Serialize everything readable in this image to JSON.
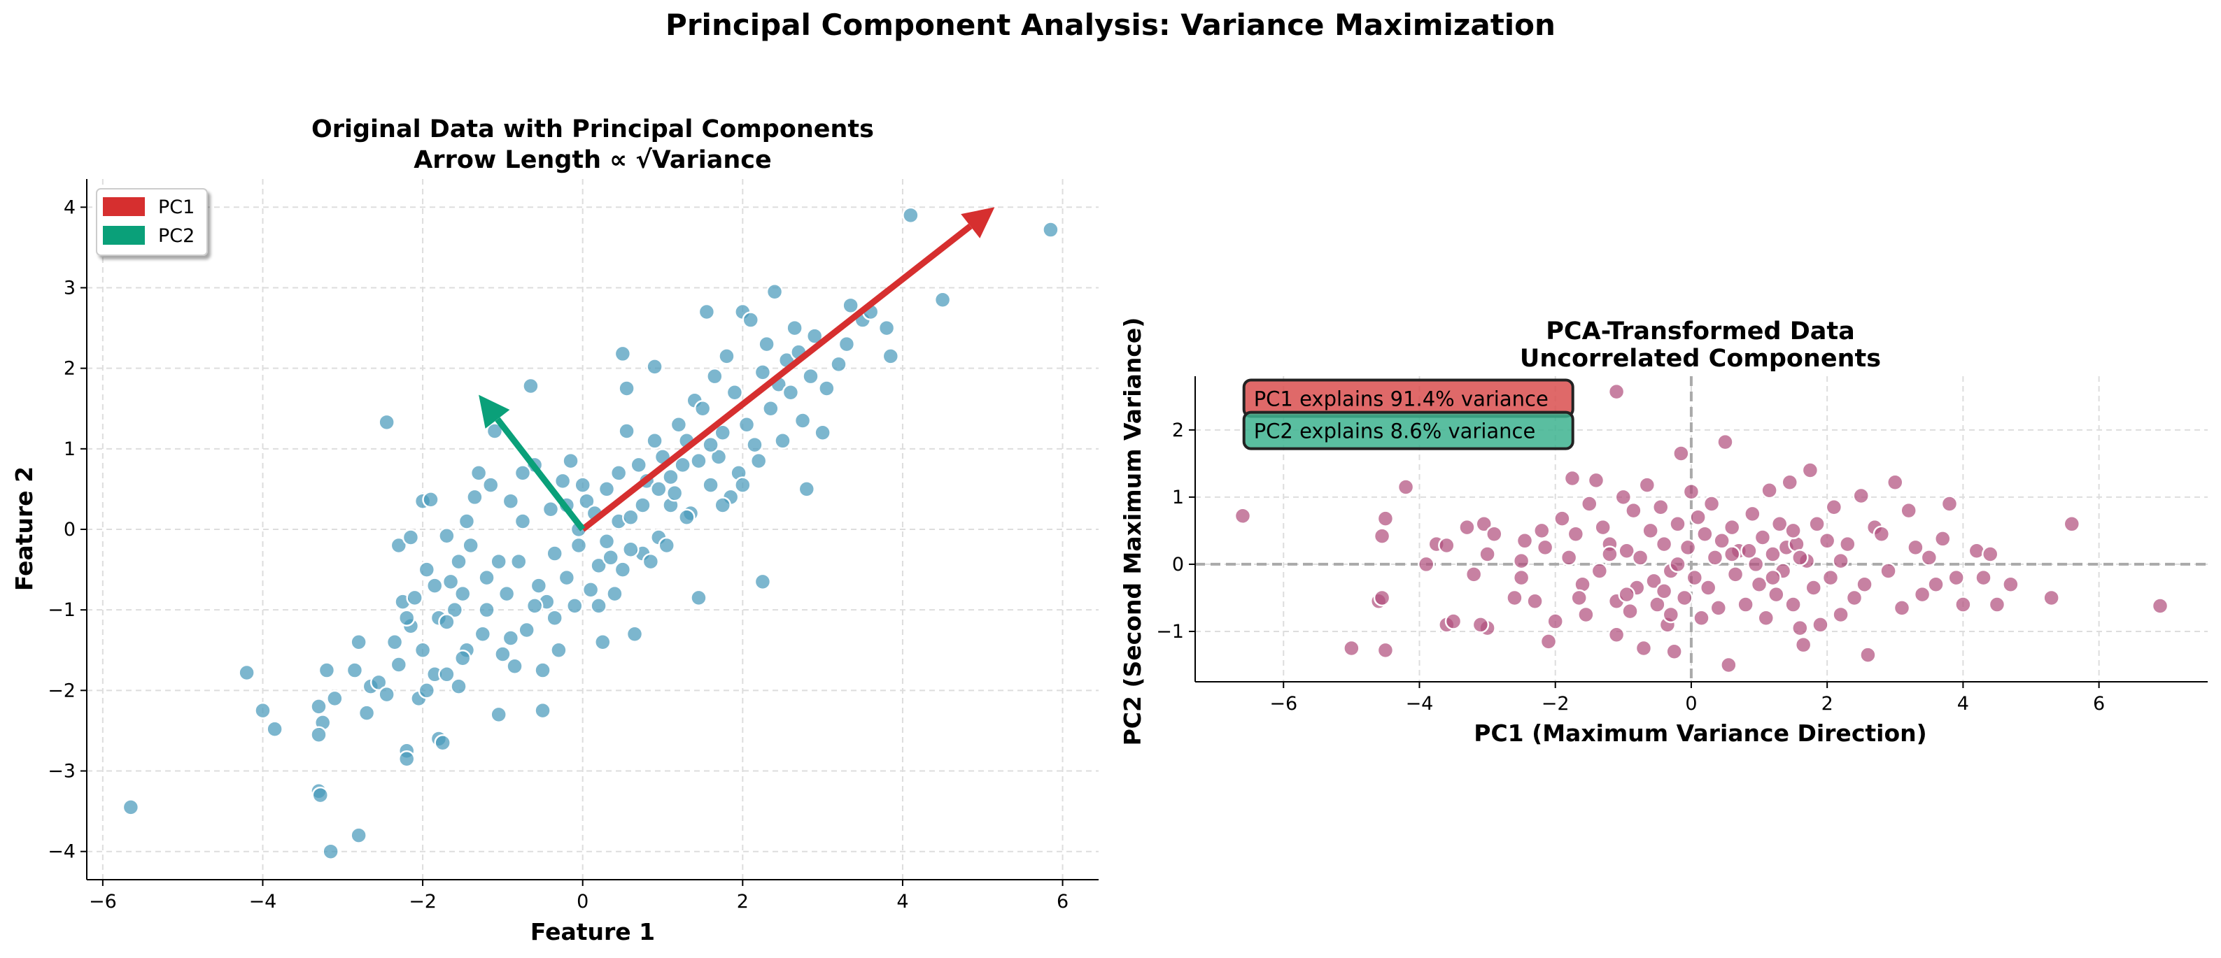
{
  "figure": {
    "suptitle": "Principal Component Analysis: Variance Maximization"
  },
  "chart_data": [
    {
      "type": "scatter",
      "title_line1": "Original Data with Principal Components",
      "title_line2": "Arrow Length ∝ √Variance",
      "xlabel": "Feature 1",
      "ylabel": "Feature 2",
      "xlim": [
        -6.2,
        6.45
      ],
      "ylim": [
        -4.35,
        4.35
      ],
      "xticks": [
        -6,
        -4,
        -2,
        0,
        2,
        4,
        6
      ],
      "yticks": [
        -4,
        -3,
        -2,
        -1,
        0,
        1,
        2,
        3,
        4
      ],
      "grid": true,
      "point_color": "#4a9abb",
      "legend": {
        "placement": "top-left",
        "entries": [
          {
            "label": "PC1",
            "color": "#d62f2f"
          },
          {
            "label": "PC2",
            "color": "#0aa079"
          }
        ]
      },
      "arrows": [
        {
          "name": "PC1",
          "from": [
            0,
            0
          ],
          "to": [
            5.15,
            4.0
          ],
          "color": "#d62f2f"
        },
        {
          "name": "PC2",
          "from": [
            0,
            0
          ],
          "to": [
            -1.3,
            1.67
          ],
          "color": "#0aa079"
        }
      ],
      "points": [
        [
          -5.65,
          -3.45
        ],
        [
          -4.2,
          -1.78
        ],
        [
          -4.0,
          -2.25
        ],
        [
          -3.85,
          -2.48
        ],
        [
          -3.3,
          -2.2
        ],
        [
          -3.25,
          -2.4
        ],
        [
          -3.3,
          -2.55
        ],
        [
          -3.3,
          -3.25
        ],
        [
          -3.28,
          -3.3
        ],
        [
          -3.15,
          -4.0
        ],
        [
          -2.8,
          -3.8
        ],
        [
          -3.2,
          -1.75
        ],
        [
          -3.1,
          -2.1
        ],
        [
          -2.85,
          -1.75
        ],
        [
          -2.7,
          -2.28
        ],
        [
          -2.65,
          -1.95
        ],
        [
          -2.55,
          -1.9
        ],
        [
          -2.45,
          -2.05
        ],
        [
          -2.8,
          -1.4
        ],
        [
          -2.35,
          -1.4
        ],
        [
          -2.3,
          -1.68
        ],
        [
          -2.2,
          -2.75
        ],
        [
          -2.2,
          -2.85
        ],
        [
          -2.15,
          -1.2
        ],
        [
          -2.05,
          -2.1
        ],
        [
          -2.0,
          -1.5
        ],
        [
          -1.95,
          -2.0
        ],
        [
          -1.85,
          -1.8
        ],
        [
          -1.8,
          -2.6
        ],
        [
          -1.75,
          -2.65
        ],
        [
          -1.7,
          -1.8
        ],
        [
          -1.55,
          -1.95
        ],
        [
          -1.45,
          -1.5
        ],
        [
          -2.45,
          1.33
        ],
        [
          -2.3,
          -0.2
        ],
        [
          -2.25,
          -0.9
        ],
        [
          -2.2,
          -1.1
        ],
        [
          -2.15,
          -0.1
        ],
        [
          -2.1,
          -0.85
        ],
        [
          -2.0,
          0.35
        ],
        [
          -1.95,
          -0.5
        ],
        [
          -1.9,
          0.37
        ],
        [
          -1.85,
          -0.7
        ],
        [
          -1.8,
          -1.1
        ],
        [
          -1.7,
          -0.08
        ],
        [
          -1.65,
          -0.65
        ],
        [
          -1.6,
          -1.0
        ],
        [
          -1.55,
          -0.4
        ],
        [
          -1.5,
          -1.6
        ],
        [
          -1.45,
          0.1
        ],
        [
          -1.4,
          -0.2
        ],
        [
          -1.35,
          0.4
        ],
        [
          -1.3,
          0.7
        ],
        [
          -1.25,
          -1.3
        ],
        [
          -1.2,
          -0.6
        ],
        [
          -1.2,
          -1.0
        ],
        [
          -1.1,
          1.22
        ],
        [
          -1.05,
          -2.3
        ],
        [
          -1.0,
          -1.55
        ],
        [
          -0.95,
          -0.8
        ],
        [
          -0.9,
          0.35
        ],
        [
          -0.85,
          -1.7
        ],
        [
          -0.8,
          -0.4
        ],
        [
          -0.75,
          0.1
        ],
        [
          -0.7,
          -1.25
        ],
        [
          -0.65,
          1.78
        ],
        [
          -0.6,
          0.8
        ],
        [
          -0.55,
          -0.7
        ],
        [
          -0.5,
          -1.75
        ],
        [
          -0.5,
          -2.25
        ],
        [
          -0.45,
          -0.9
        ],
        [
          -0.4,
          0.25
        ],
        [
          -0.35,
          -0.3
        ],
        [
          -0.3,
          -1.5
        ],
        [
          -0.25,
          0.6
        ],
        [
          -0.2,
          -0.6
        ],
        [
          -0.15,
          0.85
        ],
        [
          -0.1,
          -0.95
        ],
        [
          -0.05,
          -0.2
        ],
        [
          0.05,
          0.35
        ],
        [
          0.1,
          -0.75
        ],
        [
          0.15,
          0.2
        ],
        [
          0.2,
          -0.45
        ],
        [
          0.25,
          -1.4
        ],
        [
          0.3,
          0.5
        ],
        [
          0.35,
          -0.35
        ],
        [
          0.4,
          -0.8
        ],
        [
          0.45,
          0.1
        ],
        [
          0.5,
          -0.5
        ],
        [
          0.55,
          1.22
        ],
        [
          0.6,
          0.15
        ],
        [
          0.65,
          -1.3
        ],
        [
          0.7,
          0.8
        ],
        [
          0.75,
          -0.3
        ],
        [
          0.8,
          0.6
        ],
        [
          0.85,
          -0.4
        ],
        [
          0.9,
          1.1
        ],
        [
          0.95,
          -0.1
        ],
        [
          1.0,
          0.9
        ],
        [
          0.55,
          1.75
        ],
        [
          0.9,
          2.02
        ],
        [
          0.5,
          2.18
        ],
        [
          1.05,
          -0.2
        ],
        [
          1.1,
          0.3
        ],
        [
          1.15,
          0.45
        ],
        [
          1.2,
          1.3
        ],
        [
          1.25,
          0.8
        ],
        [
          1.3,
          1.1
        ],
        [
          1.35,
          0.2
        ],
        [
          1.4,
          1.6
        ],
        [
          1.45,
          -0.85
        ],
        [
          1.5,
          1.5
        ],
        [
          1.55,
          2.7
        ],
        [
          1.6,
          0.55
        ],
        [
          1.65,
          1.9
        ],
        [
          1.7,
          0.9
        ],
        [
          1.75,
          1.2
        ],
        [
          1.8,
          2.15
        ],
        [
          1.85,
          0.4
        ],
        [
          1.9,
          1.7
        ],
        [
          1.95,
          0.7
        ],
        [
          2.0,
          2.7
        ],
        [
          2.05,
          1.3
        ],
        [
          2.1,
          2.6
        ],
        [
          2.15,
          1.05
        ],
        [
          2.2,
          0.85
        ],
        [
          2.25,
          1.95
        ],
        [
          2.3,
          2.3
        ],
        [
          2.35,
          1.5
        ],
        [
          2.4,
          2.95
        ],
        [
          2.45,
          1.8
        ],
        [
          2.5,
          1.1
        ],
        [
          2.55,
          2.1
        ],
        [
          2.6,
          1.7
        ],
        [
          2.65,
          2.5
        ],
        [
          2.7,
          2.2
        ],
        [
          2.75,
          1.35
        ],
        [
          2.8,
          0.5
        ],
        [
          2.85,
          1.9
        ],
        [
          2.9,
          2.4
        ],
        [
          3.0,
          1.2
        ],
        [
          3.05,
          1.75
        ],
        [
          3.2,
          2.05
        ],
        [
          3.3,
          2.3
        ],
        [
          3.35,
          2.78
        ],
        [
          3.5,
          2.6
        ],
        [
          3.6,
          2.7
        ],
        [
          3.85,
          2.15
        ],
        [
          3.8,
          2.5
        ],
        [
          4.1,
          3.9
        ],
        [
          4.5,
          2.85
        ],
        [
          5.85,
          3.72
        ],
        [
          2.25,
          -0.65
        ],
        [
          1.75,
          0.3
        ],
        [
          -1.15,
          0.55
        ],
        [
          -0.75,
          0.7
        ],
        [
          -0.2,
          0.3
        ],
        [
          0.3,
          -0.15
        ],
        [
          0.6,
          -0.25
        ],
        [
          1.1,
          0.65
        ],
        [
          -1.5,
          -0.8
        ],
        [
          -0.35,
          -1.1
        ],
        [
          0.0,
          0.55
        ],
        [
          0.45,
          0.7
        ],
        [
          0.95,
          0.5
        ],
        [
          -1.7,
          -1.15
        ],
        [
          -1.05,
          -0.4
        ],
        [
          -0.6,
          -0.95
        ],
        [
          0.2,
          -0.95
        ],
        [
          1.3,
          0.15
        ],
        [
          1.6,
          1.05
        ],
        [
          2.0,
          0.55
        ],
        [
          -0.9,
          -1.35
        ],
        [
          -0.05,
          0.0
        ],
        [
          0.75,
          0.3
        ],
        [
          1.45,
          0.85
        ]
      ]
    },
    {
      "type": "scatter",
      "title_line1": "PCA-Transformed Data",
      "title_line2": "Uncorrelated Components",
      "xlabel": "PC1 (Maximum Variance Direction)",
      "ylabel": "PC2 (Second Maximum Variance)",
      "xlim": [
        -7.3,
        7.6
      ],
      "ylim": [
        -1.75,
        2.8
      ],
      "xticks": [
        -6,
        -4,
        -2,
        0,
        2,
        4,
        6
      ],
      "yticks": [
        -1,
        0,
        1,
        2
      ],
      "grid": true,
      "point_color": "#b2507e",
      "zero_lines": true,
      "annotations": [
        {
          "text": "PC1 explains 91.4% variance",
          "x": -6.5,
          "y": 2.43,
          "color": "#d94f4f"
        },
        {
          "text": "PC2 explains 8.6% variance",
          "x": -6.5,
          "y": 1.95,
          "color": "#3db38f"
        }
      ],
      "points": [
        [
          -6.6,
          0.72
        ],
        [
          -5.0,
          -1.25
        ],
        [
          -4.6,
          -0.55
        ],
        [
          -4.55,
          -0.5
        ],
        [
          -4.55,
          0.42
        ],
        [
          -4.5,
          0.68
        ],
        [
          -4.5,
          -1.28
        ],
        [
          -4.2,
          1.15
        ],
        [
          -3.9,
          0.0
        ],
        [
          -3.75,
          0.3
        ],
        [
          -3.6,
          0.28
        ],
        [
          -3.3,
          0.55
        ],
        [
          -3.2,
          -0.15
        ],
        [
          -3.6,
          -0.9
        ],
        [
          -3.5,
          -0.85
        ],
        [
          -3.0,
          -0.95
        ],
        [
          -3.1,
          -0.9
        ],
        [
          -3.0,
          0.15
        ],
        [
          -3.05,
          0.6
        ],
        [
          -2.9,
          0.45
        ],
        [
          -2.6,
          -0.5
        ],
        [
          -2.5,
          -0.2
        ],
        [
          -2.45,
          0.35
        ],
        [
          -2.3,
          -0.55
        ],
        [
          -2.2,
          0.5
        ],
        [
          -2.15,
          0.25
        ],
        [
          -2.1,
          -1.15
        ],
        [
          -2.0,
          -0.85
        ],
        [
          -1.9,
          0.68
        ],
        [
          -1.8,
          0.1
        ],
        [
          -1.75,
          1.28
        ],
        [
          -1.7,
          0.45
        ],
        [
          -1.6,
          -0.3
        ],
        [
          -1.55,
          -0.75
        ],
        [
          -1.5,
          0.9
        ],
        [
          -1.4,
          1.25
        ],
        [
          -1.35,
          -0.1
        ],
        [
          -1.3,
          0.55
        ],
        [
          -1.2,
          0.3
        ],
        [
          -1.1,
          -0.55
        ],
        [
          -1.1,
          -1.05
        ],
        [
          -1.0,
          1.0
        ],
        [
          -0.95,
          0.2
        ],
        [
          -0.9,
          -0.7
        ],
        [
          -0.85,
          0.8
        ],
        [
          -0.8,
          -0.35
        ],
        [
          -0.75,
          0.1
        ],
        [
          -0.7,
          -1.25
        ],
        [
          -0.65,
          1.18
        ],
        [
          -0.6,
          0.5
        ],
        [
          -0.55,
          -0.25
        ],
        [
          -0.5,
          -0.6
        ],
        [
          -0.45,
          0.85
        ],
        [
          -0.4,
          0.3
        ],
        [
          -0.35,
          -0.9
        ],
        [
          -0.3,
          -0.1
        ],
        [
          -0.25,
          -1.3
        ],
        [
          -0.2,
          0.6
        ],
        [
          -0.15,
          1.65
        ],
        [
          -0.1,
          -0.5
        ],
        [
          -0.05,
          0.25
        ],
        [
          0.0,
          1.08
        ],
        [
          0.05,
          -0.2
        ],
        [
          0.1,
          0.7
        ],
        [
          0.15,
          -0.8
        ],
        [
          0.2,
          0.45
        ],
        [
          0.25,
          -0.35
        ],
        [
          0.3,
          0.9
        ],
        [
          0.35,
          0.1
        ],
        [
          0.4,
          -0.65
        ],
        [
          0.45,
          0.35
        ],
        [
          0.5,
          1.82
        ],
        [
          0.55,
          -1.5
        ],
        [
          0.6,
          0.55
        ],
        [
          0.65,
          -0.15
        ],
        [
          0.7,
          0.2
        ],
        [
          0.8,
          -0.6
        ],
        [
          0.9,
          0.75
        ],
        [
          0.95,
          0.0
        ],
        [
          1.0,
          -0.3
        ],
        [
          1.05,
          0.4
        ],
        [
          1.1,
          -0.8
        ],
        [
          1.15,
          1.1
        ],
        [
          1.2,
          0.15
        ],
        [
          1.25,
          -0.45
        ],
        [
          1.3,
          0.6
        ],
        [
          1.35,
          -0.1
        ],
        [
          1.4,
          0.25
        ],
        [
          1.45,
          1.22
        ],
        [
          1.5,
          -0.6
        ],
        [
          1.55,
          0.3
        ],
        [
          1.6,
          -0.95
        ],
        [
          1.65,
          -1.2
        ],
        [
          1.7,
          0.05
        ],
        [
          1.75,
          1.4
        ],
        [
          1.8,
          -0.35
        ],
        [
          1.85,
          0.6
        ],
        [
          1.9,
          -0.9
        ],
        [
          2.0,
          0.35
        ],
        [
          2.05,
          -0.2
        ],
        [
          2.1,
          0.85
        ],
        [
          2.2,
          -0.75
        ],
        [
          2.3,
          0.3
        ],
        [
          2.4,
          -0.5
        ],
        [
          2.5,
          1.02
        ],
        [
          2.55,
          -0.3
        ],
        [
          2.6,
          -1.35
        ],
        [
          2.7,
          0.55
        ],
        [
          2.8,
          0.45
        ],
        [
          2.9,
          -0.1
        ],
        [
          3.0,
          1.22
        ],
        [
          3.1,
          -0.65
        ],
        [
          3.2,
          0.8
        ],
        [
          3.3,
          0.25
        ],
        [
          3.4,
          -0.45
        ],
        [
          3.5,
          0.1
        ],
        [
          3.6,
          -0.3
        ],
        [
          3.7,
          0.38
        ],
        [
          3.8,
          0.9
        ],
        [
          3.9,
          -0.2
        ],
        [
          4.0,
          -0.6
        ],
        [
          4.2,
          0.2
        ],
        [
          4.3,
          -0.2
        ],
        [
          4.4,
          0.15
        ],
        [
          4.5,
          -0.6
        ],
        [
          4.7,
          -0.3
        ],
        [
          5.3,
          -0.5
        ],
        [
          5.6,
          0.6
        ],
        [
          6.9,
          -0.62
        ],
        [
          -1.1,
          2.57
        ],
        [
          -1.2,
          0.15
        ],
        [
          -0.4,
          -0.4
        ],
        [
          0.85,
          0.2
        ],
        [
          1.2,
          -0.2
        ],
        [
          -2.5,
          0.05
        ],
        [
          -1.65,
          -0.5
        ],
        [
          -0.95,
          -0.45
        ],
        [
          -0.2,
          0.0
        ],
        [
          0.6,
          0.15
        ],
        [
          1.5,
          0.5
        ],
        [
          2.2,
          0.05
        ],
        [
          -0.3,
          -0.75
        ],
        [
          1.6,
          0.1
        ]
      ]
    }
  ]
}
